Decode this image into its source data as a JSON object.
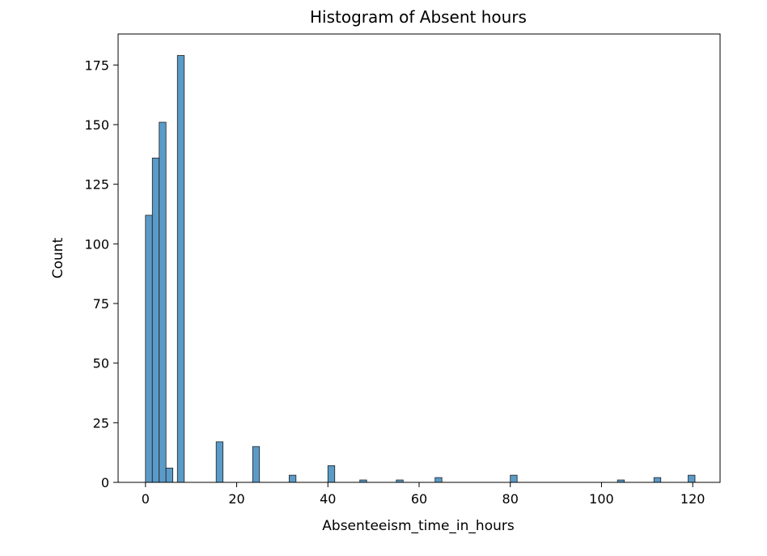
{
  "chart_data": {
    "type": "bar",
    "title": "Histogram of Absent hours",
    "xlabel": "Absenteeism_time_in_hours",
    "ylabel": "Count",
    "xlim": [
      -6,
      126
    ],
    "ylim": [
      0,
      188
    ],
    "xticks": [
      0,
      20,
      40,
      60,
      80,
      100,
      120
    ],
    "yticks": [
      0,
      25,
      50,
      75,
      100,
      125,
      150,
      175
    ],
    "bin_width": 1.5,
    "bar_color": "#5b9bc8",
    "bins": [
      {
        "x0": 0.0,
        "count": 112
      },
      {
        "x0": 1.5,
        "count": 136
      },
      {
        "x0": 3.0,
        "count": 151
      },
      {
        "x0": 4.5,
        "count": 6
      },
      {
        "x0": 7.0,
        "count": 179
      },
      {
        "x0": 15.5,
        "count": 17
      },
      {
        "x0": 23.5,
        "count": 15
      },
      {
        "x0": 31.5,
        "count": 3
      },
      {
        "x0": 40.0,
        "count": 7
      },
      {
        "x0": 47.0,
        "count": 1
      },
      {
        "x0": 55.0,
        "count": 1
      },
      {
        "x0": 63.5,
        "count": 2
      },
      {
        "x0": 80.0,
        "count": 3
      },
      {
        "x0": 103.5,
        "count": 1
      },
      {
        "x0": 111.5,
        "count": 2
      },
      {
        "x0": 119.0,
        "count": 3
      }
    ]
  }
}
